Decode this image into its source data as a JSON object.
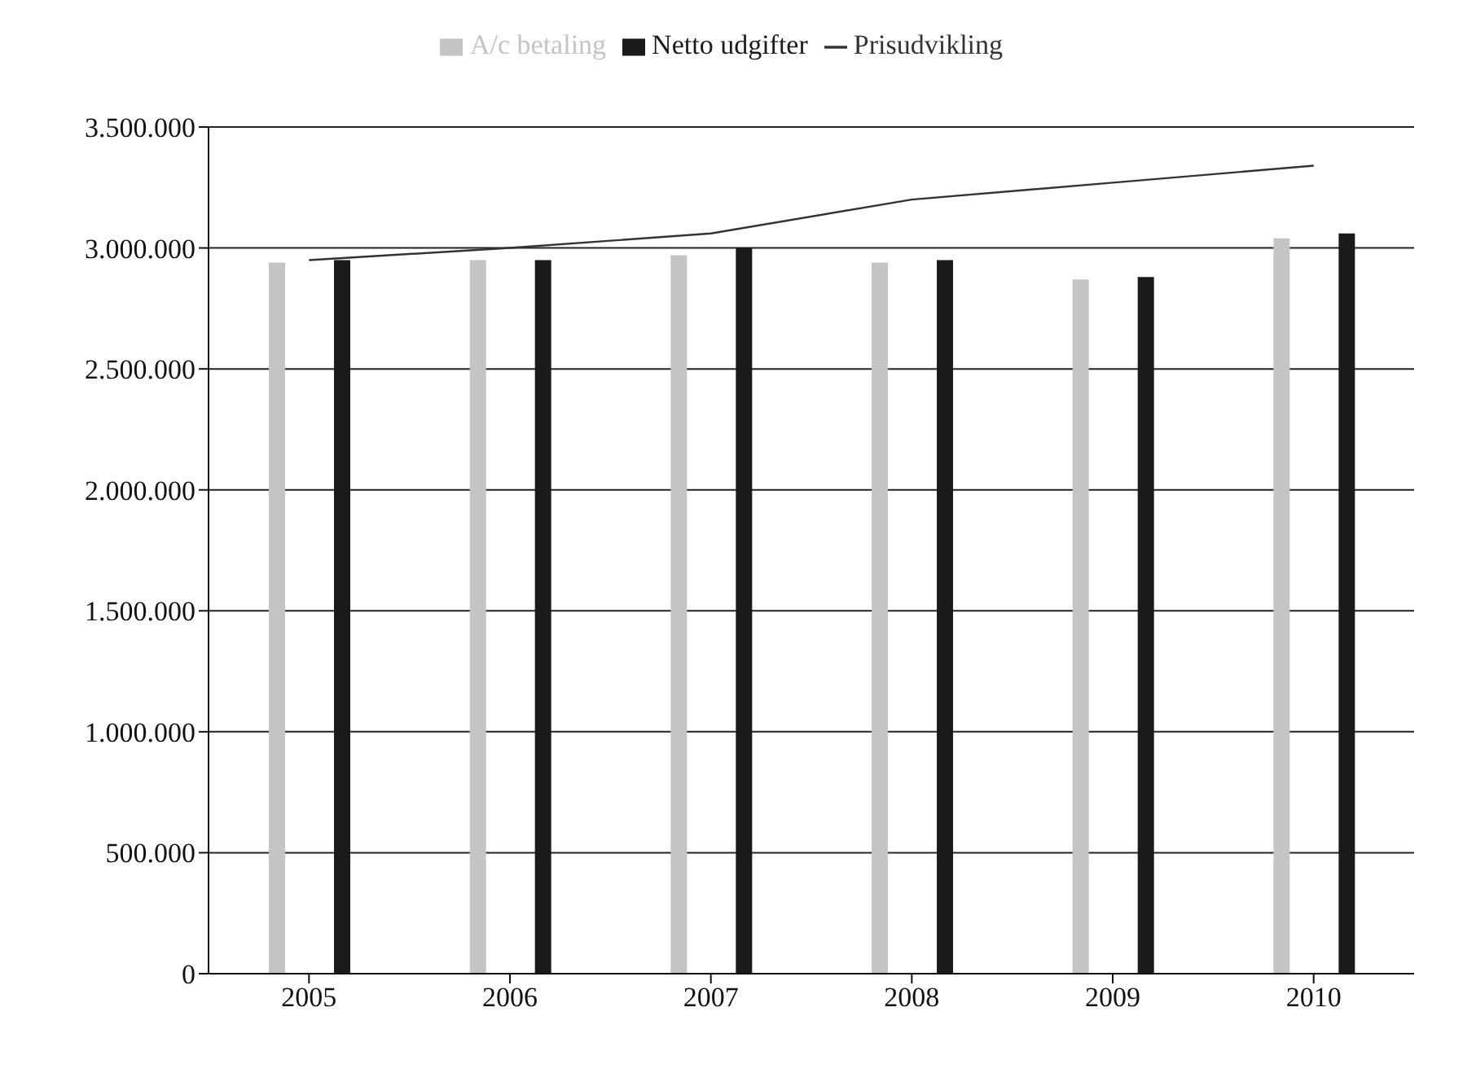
{
  "chart_data": {
    "type": "bar",
    "categories": [
      "2005",
      "2006",
      "2007",
      "2008",
      "2009",
      "2010"
    ],
    "series": [
      {
        "name": "A/c betaling",
        "color": "#c4c4c4",
        "values": [
          2940000,
          2950000,
          2970000,
          2940000,
          2870000,
          3040000
        ]
      },
      {
        "name": "Netto udgifter",
        "color": "#1a1a1a",
        "values": [
          2950000,
          2950000,
          3000000,
          2950000,
          2880000,
          3060000
        ]
      },
      {
        "name": "Prisudvikling",
        "type": "line",
        "color": "#333333",
        "values": [
          2950000,
          3000000,
          3060000,
          3200000,
          3270000,
          3340000
        ]
      }
    ],
    "ylim": [
      0,
      3500000
    ],
    "yticks": [
      {
        "value": 0,
        "label": "0"
      },
      {
        "value": 500000,
        "label": "500.000"
      },
      {
        "value": 1000000,
        "label": "1.000.000"
      },
      {
        "value": 1500000,
        "label": "1.500.000"
      },
      {
        "value": 2000000,
        "label": "2.000.000"
      },
      {
        "value": 2500000,
        "label": "2.500.000"
      },
      {
        "value": 3000000,
        "label": "3.000.000"
      },
      {
        "value": 3500000,
        "label": "3.500.000"
      }
    ],
    "grid": "y",
    "legend": "top",
    "marker": "none",
    "line_style": "solid"
  }
}
